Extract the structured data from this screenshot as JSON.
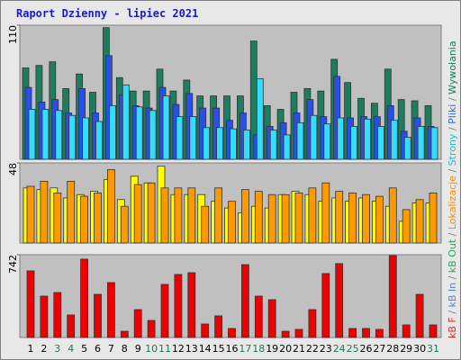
{
  "title": "Raport Dzienny -  lipiec 2021",
  "categories": [
    "1",
    "2",
    "3",
    "4",
    "5",
    "6",
    "7",
    "8",
    "9",
    "10",
    "11",
    "12",
    "13",
    "14",
    "15",
    "16",
    "17",
    "18",
    "19",
    "20",
    "21",
    "22",
    "23",
    "24",
    "25",
    "26",
    "27",
    "28",
    "29",
    "30",
    "31"
  ],
  "category_colors": [
    "#000000",
    "#000000",
    "#1a7a5a",
    "#1a7a5a",
    "#000000",
    "#000000",
    "#000000",
    "#000000",
    "#000000",
    "#1a7a5a",
    "#1a7a5a",
    "#000000",
    "#000000",
    "#000000",
    "#000000",
    "#000000",
    "#1a7a5a",
    "#1a7a5a",
    "#000000",
    "#000000",
    "#000000",
    "#000000",
    "#000000",
    "#1a7a5a",
    "#1a7a5a",
    "#000000",
    "#000000",
    "#000000",
    "#000000",
    "#000000",
    "#1a7a5a"
  ],
  "legend": [
    {
      "text": "kB F",
      "color": "#ee2222"
    },
    {
      "text": "kB In",
      "color": "#4488dd"
    },
    {
      "text": "kB Out",
      "color": "#22aa55"
    },
    {
      "text": "Lokalizacje",
      "color": "#ff8800"
    },
    {
      "text": "Strony",
      "color": "#22bbcc"
    },
    {
      "text": "Pliki",
      "color": "#3366dd"
    },
    {
      "text": "Wywołania",
      "color": "#1a7a5a"
    }
  ],
  "legend_separator": " / ",
  "chart_data": [
    {
      "type": "bar",
      "ylim": [
        0,
        110
      ],
      "yticks": [
        110
      ],
      "series": [
        {
          "color": "#1e7d5c",
          "values": [
            75,
            77,
            80,
            58,
            70,
            55,
            108,
            67,
            56,
            56,
            74,
            56,
            65,
            52,
            52,
            52,
            52,
            97,
            44,
            41,
            55,
            58,
            56,
            82,
            63,
            50,
            46,
            74,
            49,
            48,
            44
          ]
        },
        {
          "color": "#2a4fe6",
          "values": [
            59,
            47,
            49,
            38,
            58,
            38,
            85,
            53,
            44,
            42,
            59,
            45,
            54,
            42,
            42,
            32,
            38,
            20,
            27,
            30,
            38,
            49,
            35,
            68,
            34,
            35,
            35,
            44,
            23,
            34,
            27
          ]
        },
        {
          "color": "#33ddff",
          "values": [
            41,
            41,
            40,
            36,
            34,
            31,
            44,
            61,
            43,
            40,
            52,
            35,
            35,
            26,
            26,
            25,
            24,
            66,
            24,
            20,
            30,
            36,
            29,
            34,
            27,
            33,
            27,
            32,
            18,
            27,
            26
          ]
        }
      ]
    },
    {
      "type": "bar",
      "ylim": [
        0,
        48
      ],
      "yticks": [
        48
      ],
      "series": [
        {
          "color": "#ffff00",
          "values": [
            33,
            32,
            33,
            27,
            29,
            31,
            38,
            26,
            40,
            36,
            46,
            29,
            29,
            29,
            25,
            21,
            18,
            22,
            21,
            29,
            31,
            29,
            25,
            27,
            25,
            27,
            25,
            22,
            13,
            24,
            24
          ]
        },
        {
          "color": "#ff9900",
          "values": [
            34,
            37,
            30,
            37,
            28,
            30,
            44,
            22,
            35,
            36,
            33,
            33,
            33,
            22,
            33,
            25,
            32,
            31,
            29,
            29,
            30,
            33,
            36,
            31,
            30,
            29,
            28,
            33,
            20,
            26,
            30
          ]
        }
      ]
    },
    {
      "type": "bar",
      "ylim": [
        0,
        742
      ],
      "yticks": [
        742
      ],
      "series": [
        {
          "color": "#ee0000",
          "values": [
            597,
            371,
            403,
            202,
            702,
            387,
            492,
            56,
            250,
            153,
            476,
            565,
            581,
            121,
            194,
            81,
            653,
            371,
            339,
            56,
            73,
            250,
            573,
            662,
            81,
            81,
            73,
            734,
            113,
            387,
            113
          ]
        }
      ]
    }
  ]
}
